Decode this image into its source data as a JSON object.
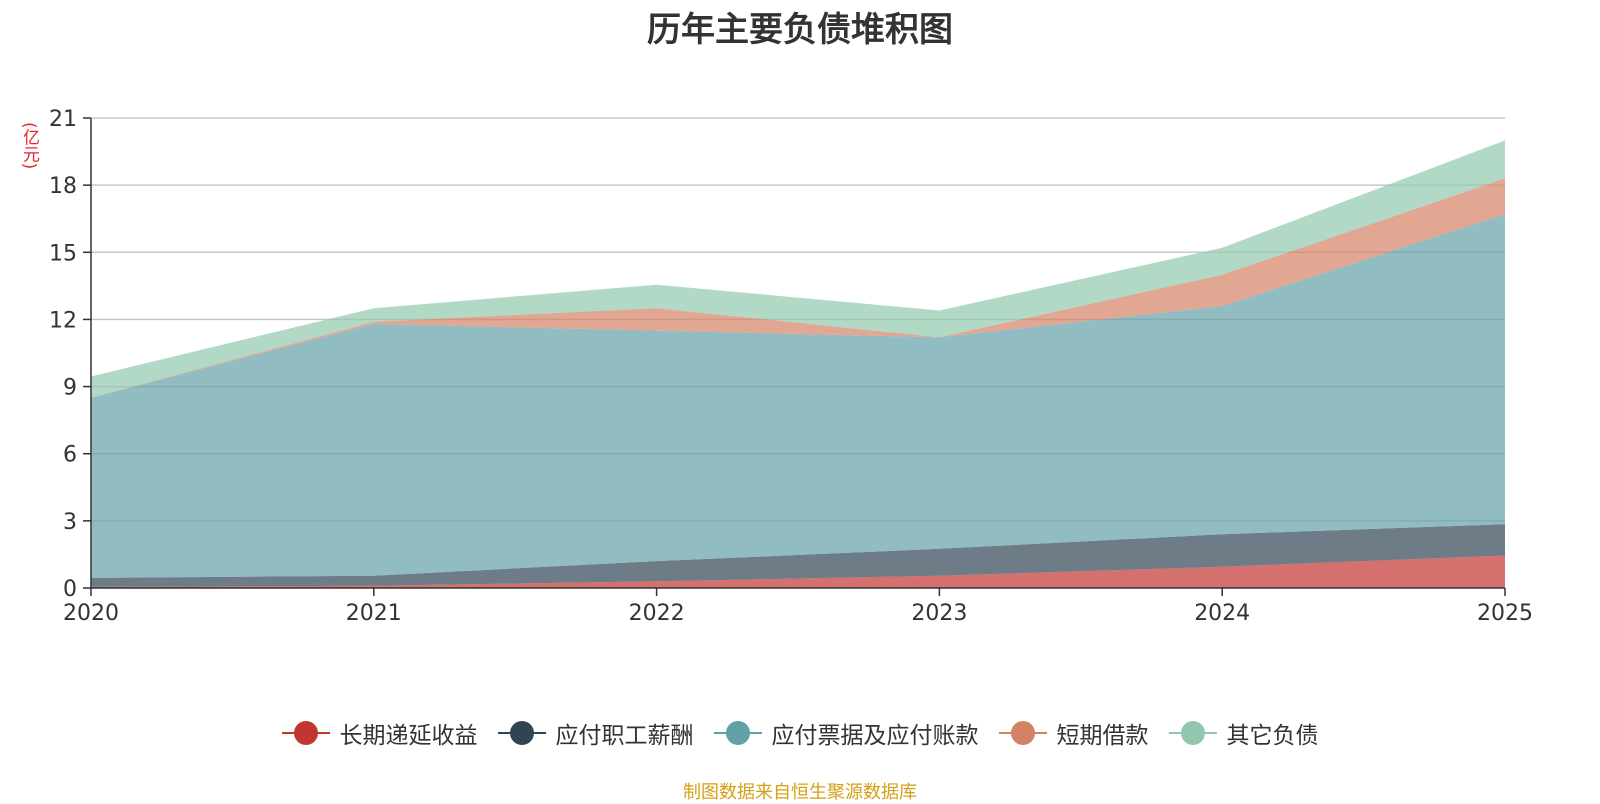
{
  "chart_data": {
    "type": "area",
    "stacked": true,
    "title": "历年主要负债堆积图",
    "ylabel": "(亿元)",
    "xlabel": "",
    "categories": [
      "2020",
      "2021",
      "2022",
      "2023",
      "2024",
      "2025"
    ],
    "ylim": [
      0,
      21
    ],
    "yticks": [
      0,
      3,
      6,
      9,
      12,
      15,
      18,
      21
    ],
    "grid": true,
    "legend_position": "bottom",
    "series": [
      {
        "name": "长期递延收益",
        "color": "#c23531",
        "values": [
          0.05,
          0.1,
          0.3,
          0.55,
          0.95,
          1.45
        ]
      },
      {
        "name": "应付职工薪酬",
        "color": "#2f4554",
        "values": [
          0.4,
          0.45,
          0.9,
          1.2,
          1.45,
          1.4
        ]
      },
      {
        "name": "应付票据及应付账款",
        "color": "#61a0a8",
        "values": [
          8.05,
          11.25,
          10.3,
          9.45,
          10.2,
          13.85
        ]
      },
      {
        "name": "短期借款",
        "color": "#d48265",
        "values": [
          0.0,
          0.1,
          1.0,
          0.0,
          1.4,
          1.6
        ]
      },
      {
        "name": "其它负债",
        "color": "#91c7ae",
        "values": [
          0.95,
          0.6,
          1.05,
          1.2,
          1.2,
          1.7
        ]
      }
    ]
  },
  "footer": {
    "source": "制图数据来自恒生聚源数据库"
  }
}
